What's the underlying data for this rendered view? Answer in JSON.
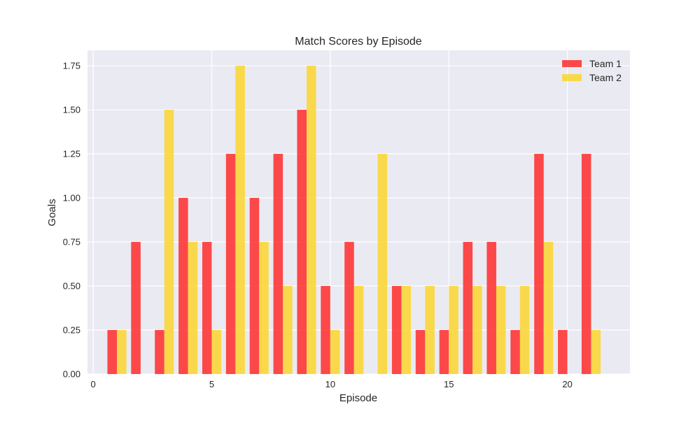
{
  "chart_data": {
    "type": "bar",
    "title": "Match Scores by Episode",
    "xlabel": "Episode",
    "ylabel": "Goals",
    "x": [
      1,
      2,
      3,
      4,
      5,
      6,
      7,
      8,
      9,
      10,
      11,
      12,
      13,
      14,
      15,
      16,
      17,
      18,
      19,
      20,
      21
    ],
    "series": [
      {
        "name": "Team 1",
        "color": "#ff2b2b",
        "values": [
          0.25,
          0.75,
          0.25,
          1.0,
          0.75,
          1.25,
          1.0,
          1.25,
          1.5,
          0.5,
          0.75,
          0,
          0.5,
          0.25,
          0.25,
          0.75,
          0.75,
          0.25,
          1.25,
          0.25,
          1.25
        ]
      },
      {
        "name": "Team 2",
        "color": "#fcd62e",
        "values": [
          0.25,
          0,
          1.5,
          0.75,
          0.25,
          1.75,
          0.75,
          0.5,
          1.75,
          0.25,
          0.5,
          1.25,
          0.5,
          0.5,
          0.5,
          0.5,
          0.5,
          0.5,
          0.75,
          0,
          0.25
        ]
      }
    ],
    "bar_width": 0.4,
    "bar_alpha": 0.85,
    "xlim": [
      -0.24,
      22.64
    ],
    "ylim": [
      0,
      1.8375
    ],
    "xticks": [
      0,
      5,
      10,
      15,
      20
    ],
    "xtick_labels": [
      "0",
      "5",
      "10",
      "15",
      "20"
    ],
    "yticks": [
      0,
      0.25,
      0.5,
      0.75,
      1.0,
      1.25,
      1.5,
      1.75
    ],
    "ytick_labels": [
      "0.00",
      "0.25",
      "0.50",
      "0.75",
      "1.00",
      "1.25",
      "1.50",
      "1.75"
    ],
    "grid": true,
    "legend_position": "top-right",
    "background_color": "#eaeaf2",
    "grid_color": "#ffffff"
  }
}
